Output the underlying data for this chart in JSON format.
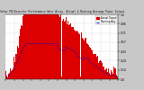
{
  "title": "Solar PV/Inverter Performance West Array  Actual & Running Average Power Output",
  "bg_color": "#c8c8c8",
  "plot_bg": "#ffffff",
  "bar_color": "#dd0000",
  "avg_color": "#0000cc",
  "grid_color": "#aaaaaa",
  "n_points": 365,
  "peak_value": 1.0,
  "ylim": [
    0,
    1.0
  ],
  "ytick_labels": [
    "p",
    "H1.4",
    "1",
    "t.",
    "Vc.",
    "1",
    "1.",
    "12.",
    "1",
    "2T.",
    "1"
  ],
  "legend_actual": "Actual Output",
  "legend_avg": "Running Avg"
}
